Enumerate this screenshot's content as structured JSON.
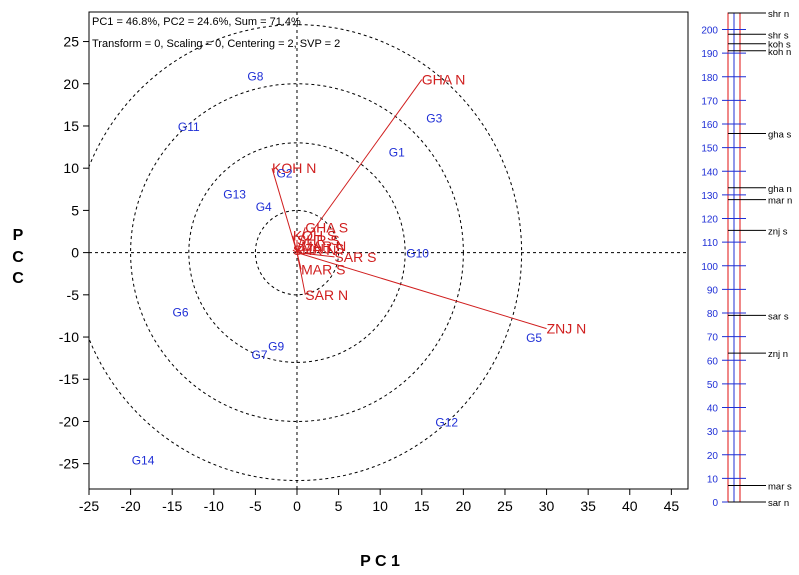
{
  "chart_data": [
    {
      "type": "scatter",
      "title": "PC1 = 46.8%, PC2 = 24.6%, Sum = 71.4%",
      "subtitle": "Transform = 0, Scaling = 0, Centering = 2, SVP = 2",
      "xlabel": "P C 1",
      "ylabel": "P C 2",
      "xlim": [
        -25,
        47
      ],
      "ylim": [
        -28,
        28.5
      ],
      "x_ticks": [
        -25,
        -20,
        -15,
        -10,
        -5,
        0,
        5,
        10,
        15,
        20,
        25,
        30,
        35,
        40,
        45
      ],
      "y_ticks": [
        -25,
        -20,
        -15,
        -10,
        -5,
        0,
        5,
        10,
        15,
        20,
        25
      ],
      "circle_radii": [
        5,
        13,
        20,
        27
      ],
      "genotype_color": "#1f2fd6",
      "tester_color": "#d01e1e",
      "genotypes": [
        {
          "label": "G1",
          "x": 12,
          "y": 12
        },
        {
          "label": "G2",
          "x": -1.5,
          "y": 9.5
        },
        {
          "label": "G3",
          "x": 16.5,
          "y": 16
        },
        {
          "label": "G4",
          "x": -4,
          "y": 5.5
        },
        {
          "label": "G5",
          "x": 28.5,
          "y": -10
        },
        {
          "label": "G6",
          "x": -14,
          "y": -7
        },
        {
          "label": "G7",
          "x": -4.5,
          "y": -12
        },
        {
          "label": "G8",
          "x": -5,
          "y": 21
        },
        {
          "label": "G9",
          "x": -2.5,
          "y": -11
        },
        {
          "label": "G10",
          "x": 14.5,
          "y": 0
        },
        {
          "label": "G11",
          "x": -13,
          "y": 15
        },
        {
          "label": "G12",
          "x": 18,
          "y": -20
        },
        {
          "label": "G13",
          "x": -7.5,
          "y": 7
        },
        {
          "label": "G14",
          "x": -18.5,
          "y": -24.5
        }
      ],
      "testers": [
        {
          "label": "GHA N",
          "x": 15,
          "y": 20.5
        },
        {
          "label": "ZNJ N",
          "x": 30,
          "y": -9
        },
        {
          "label": "KOH N",
          "x": -3,
          "y": 10
        },
        {
          "label": "SAR N",
          "x": 1,
          "y": -5
        },
        {
          "label": "GHA S",
          "x": 1,
          "y": 3
        },
        {
          "label": "SAR S",
          "x": 4.5,
          "y": -0.5
        },
        {
          "label": "MAR S",
          "x": 0.5,
          "y": -2
        },
        {
          "label": "KOH S",
          "x": -0.5,
          "y": 2
        },
        {
          "label": "SHR S",
          "x": 0,
          "y": 1.5
        },
        {
          "label": "MAR N",
          "x": 0.5,
          "y": 0.8
        },
        {
          "label": "ZNJ S",
          "x": 1,
          "y": 0.5
        },
        {
          "label": "SHR N",
          "x": -0.5,
          "y": 0.3
        }
      ]
    },
    {
      "type": "bar",
      "ylim": [
        0,
        207
      ],
      "y_ticks": [
        0,
        10,
        20,
        30,
        40,
        50,
        60,
        70,
        80,
        90,
        100,
        110,
        120,
        130,
        140,
        150,
        160,
        170,
        180,
        190,
        200
      ],
      "markers": [
        {
          "label": "shr n",
          "value": 207
        },
        {
          "label": "shr s",
          "value": 198
        },
        {
          "label": "koh s",
          "value": 194
        },
        {
          "label": "koh n",
          "value": 191
        },
        {
          "label": "gha s",
          "value": 156
        },
        {
          "label": "gha n",
          "value": 133
        },
        {
          "label": "mar n",
          "value": 128
        },
        {
          "label": "znj s",
          "value": 115
        },
        {
          "label": "sar s",
          "value": 79
        },
        {
          "label": "znj n",
          "value": 63
        },
        {
          "label": "mar s",
          "value": 7
        },
        {
          "label": "sar n",
          "value": 0
        }
      ]
    }
  ]
}
